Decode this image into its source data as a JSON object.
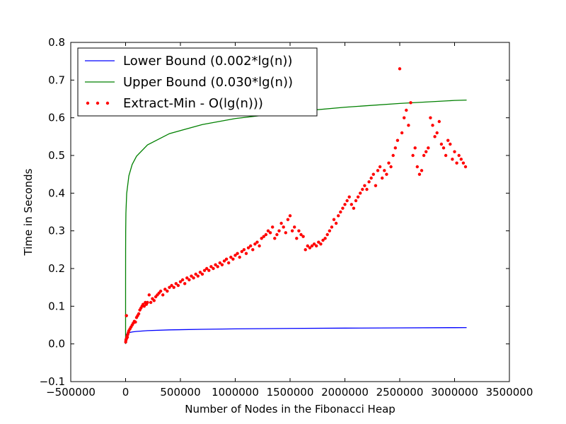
{
  "chart_data": {
    "type": "line",
    "title": "",
    "xlabel": "Number of Nodes in the Fibonacci Heap",
    "ylabel": "Time in Seconds",
    "xlim": [
      -500000,
      3500000
    ],
    "ylim": [
      -0.1,
      0.8
    ],
    "grid": false,
    "legend_position": "top-left",
    "x_tick_values": [
      -500000,
      0,
      500000,
      1000000,
      1500000,
      2000000,
      2500000,
      3000000,
      3500000
    ],
    "x_tick_labels": [
      "−500000",
      "0",
      "500000",
      "1000000",
      "1500000",
      "2000000",
      "2500000",
      "3000000",
      "3500000"
    ],
    "y_tick_values": [
      -0.1,
      0.0,
      0.1,
      0.2,
      0.3,
      0.4,
      0.5,
      0.6,
      0.7,
      0.8
    ],
    "y_tick_labels": [
      "−0.1",
      "0.0",
      "0.1",
      "0.2",
      "0.3",
      "0.4",
      "0.5",
      "0.6",
      "0.7",
      "0.8"
    ],
    "series": [
      {
        "name": "Lower Bound (0.002*lg(n))",
        "kind": "line",
        "color": "#0000ff",
        "x": [
          1,
          10,
          100,
          1000,
          5000,
          10000,
          30000,
          60000,
          100000,
          200000,
          400000,
          700000,
          1000000,
          1500000,
          2000000,
          2500000,
          3000000,
          3110000
        ],
        "y": [
          0.0,
          0.0066,
          0.0133,
          0.0199,
          0.0246,
          0.0266,
          0.0297,
          0.0317,
          0.0332,
          0.0352,
          0.0372,
          0.0388,
          0.0399,
          0.0411,
          0.0419,
          0.0425,
          0.0431,
          0.0432
        ]
      },
      {
        "name": "Upper Bound (0.030*lg(n))",
        "kind": "line",
        "color": "#008000",
        "x": [
          1,
          3,
          10,
          30,
          100,
          300,
          1000,
          3000,
          10000,
          30000,
          60000,
          100000,
          200000,
          400000,
          700000,
          1000000,
          1500000,
          2000000,
          2500000,
          3000000,
          3110000
        ],
        "y": [
          0.0,
          0.048,
          0.1,
          0.147,
          0.199,
          0.247,
          0.299,
          0.347,
          0.399,
          0.446,
          0.476,
          0.498,
          0.528,
          0.558,
          0.582,
          0.598,
          0.615,
          0.628,
          0.638,
          0.646,
          0.647
        ]
      },
      {
        "name": "Extract-Min - O(lg(n)))",
        "kind": "scatter",
        "color": "#ff0000",
        "x": [
          1000,
          3000,
          5000,
          8000,
          10000,
          13000,
          16000,
          20000,
          25000,
          30000,
          40000,
          50000,
          60000,
          70000,
          80000,
          90000,
          100000,
          110000,
          120000,
          130000,
          140000,
          150000,
          160000,
          170000,
          180000,
          190000,
          200000,
          215000,
          230000,
          245000,
          260000,
          275000,
          290000,
          305000,
          320000,
          340000,
          360000,
          380000,
          400000,
          420000,
          440000,
          460000,
          480000,
          500000,
          520000,
          540000,
          560000,
          580000,
          600000,
          620000,
          640000,
          660000,
          680000,
          700000,
          720000,
          740000,
          760000,
          780000,
          800000,
          820000,
          840000,
          860000,
          880000,
          900000,
          920000,
          940000,
          960000,
          980000,
          1000000,
          1020000,
          1040000,
          1060000,
          1080000,
          1100000,
          1120000,
          1140000,
          1160000,
          1180000,
          1200000,
          1220000,
          1240000,
          1260000,
          1280000,
          1300000,
          1320000,
          1340000,
          1360000,
          1380000,
          1400000,
          1420000,
          1440000,
          1460000,
          1480000,
          1500000,
          1520000,
          1540000,
          1560000,
          1580000,
          1600000,
          1620000,
          1640000,
          1660000,
          1680000,
          1700000,
          1720000,
          1740000,
          1760000,
          1780000,
          1800000,
          1820000,
          1840000,
          1860000,
          1880000,
          1900000,
          1920000,
          1940000,
          1960000,
          1980000,
          2000000,
          2020000,
          2040000,
          2060000,
          2080000,
          2100000,
          2120000,
          2140000,
          2160000,
          2180000,
          2200000,
          2220000,
          2240000,
          2260000,
          2280000,
          2300000,
          2320000,
          2340000,
          2360000,
          2380000,
          2400000,
          2420000,
          2440000,
          2460000,
          2480000,
          2500000,
          2520000,
          2540000,
          2560000,
          2580000,
          2600000,
          2620000,
          2640000,
          2660000,
          2680000,
          2700000,
          2720000,
          2740000,
          2760000,
          2780000,
          2800000,
          2820000,
          2840000,
          2860000,
          2880000,
          2900000,
          2920000,
          2940000,
          2960000,
          2980000,
          3000000,
          3020000,
          3040000,
          3060000,
          3080000,
          3100000
        ],
        "y": [
          0.005,
          0.01,
          0.012,
          0.075,
          0.015,
          0.02,
          0.018,
          0.025,
          0.03,
          0.035,
          0.04,
          0.045,
          0.05,
          0.055,
          0.06,
          0.058,
          0.07,
          0.075,
          0.08,
          0.09,
          0.095,
          0.1,
          0.105,
          0.1,
          0.11,
          0.105,
          0.11,
          0.13,
          0.11,
          0.12,
          0.115,
          0.125,
          0.13,
          0.135,
          0.14,
          0.13,
          0.145,
          0.14,
          0.15,
          0.155,
          0.15,
          0.16,
          0.155,
          0.165,
          0.17,
          0.16,
          0.175,
          0.17,
          0.18,
          0.175,
          0.185,
          0.18,
          0.19,
          0.185,
          0.195,
          0.2,
          0.195,
          0.205,
          0.2,
          0.21,
          0.205,
          0.215,
          0.21,
          0.22,
          0.225,
          0.215,
          0.23,
          0.225,
          0.235,
          0.24,
          0.23,
          0.245,
          0.25,
          0.24,
          0.255,
          0.26,
          0.25,
          0.265,
          0.27,
          0.26,
          0.28,
          0.285,
          0.29,
          0.3,
          0.295,
          0.31,
          0.28,
          0.29,
          0.3,
          0.32,
          0.31,
          0.295,
          0.33,
          0.34,
          0.3,
          0.31,
          0.28,
          0.3,
          0.29,
          0.285,
          0.25,
          0.26,
          0.255,
          0.26,
          0.265,
          0.26,
          0.27,
          0.265,
          0.275,
          0.28,
          0.29,
          0.3,
          0.31,
          0.33,
          0.32,
          0.34,
          0.35,
          0.36,
          0.37,
          0.38,
          0.39,
          0.37,
          0.36,
          0.38,
          0.39,
          0.4,
          0.41,
          0.42,
          0.41,
          0.43,
          0.44,
          0.45,
          0.42,
          0.46,
          0.47,
          0.44,
          0.46,
          0.45,
          0.48,
          0.47,
          0.5,
          0.52,
          0.54,
          0.73,
          0.56,
          0.6,
          0.62,
          0.58,
          0.64,
          0.5,
          0.52,
          0.47,
          0.45,
          0.46,
          0.5,
          0.51,
          0.52,
          0.6,
          0.58,
          0.55,
          0.56,
          0.59,
          0.53,
          0.52,
          0.5,
          0.54,
          0.53,
          0.49,
          0.51,
          0.48,
          0.5,
          0.49,
          0.48,
          0.47
        ]
      }
    ]
  }
}
